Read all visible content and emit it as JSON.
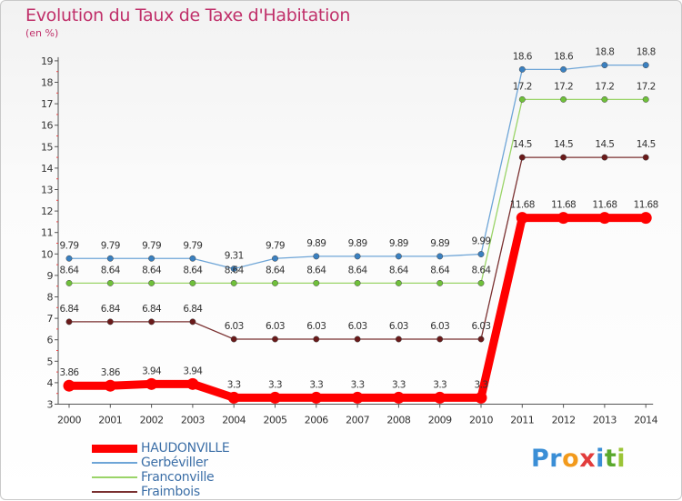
{
  "header": {
    "title": "Evolution du Taux de Taxe d'Habitation",
    "unit": "(en %)"
  },
  "logo": {
    "letters": [
      "P",
      "r",
      "o",
      "x",
      "i",
      "t",
      "i"
    ],
    "colors": [
      "#3a8ed6",
      "#3a8ed6",
      "#f29a1c",
      "#e23c3c",
      "#3a8ed6",
      "#5aa92d",
      "#9bc436"
    ]
  },
  "chart_data": {
    "type": "line",
    "title": "Evolution du Taux de Taxe d'Habitation",
    "ylabel": "(en %)",
    "xlabel": "",
    "ylim": [
      3,
      19
    ],
    "yticks": [
      "3",
      "4",
      "5",
      "6",
      "7",
      "8",
      "9",
      "10",
      "11",
      "12",
      "13",
      "14",
      "15",
      "16",
      "17",
      "18",
      "19"
    ],
    "x": [
      "2000",
      "2001",
      "2002",
      "2003",
      "2004",
      "2005",
      "2006",
      "2007",
      "2008",
      "2009",
      "2010",
      "2011",
      "2012",
      "2013",
      "2014"
    ],
    "grid": false,
    "legend_position": "bottom-left",
    "series": [
      {
        "name": "HAUDONVILLE",
        "color": "#ff0000",
        "emphasis": true,
        "values": [
          3.86,
          3.86,
          3.94,
          3.94,
          3.3,
          3.3,
          3.3,
          3.3,
          3.3,
          3.3,
          3.3,
          11.68,
          11.68,
          11.68,
          11.68
        ],
        "labels": [
          "3.86",
          "3.86",
          "3.94",
          "3.94",
          "3.3",
          "3.3",
          "3.3",
          "3.3",
          "3.3",
          "3.3",
          "3.3",
          "11.68",
          "11.68",
          "11.68",
          "11.68"
        ]
      },
      {
        "name": "Gerbéviller",
        "color": "#6ea5d7",
        "marker": "#3a80c0",
        "values": [
          9.79,
          9.79,
          9.79,
          9.79,
          9.31,
          9.79,
          9.89,
          9.89,
          9.89,
          9.89,
          9.99,
          18.6,
          18.6,
          18.8,
          18.8
        ],
        "labels": [
          "9.79",
          "9.79",
          "9.79",
          "9.79",
          "9.31",
          "9.79",
          "9.89",
          "9.89",
          "9.89",
          "9.89",
          "9.99",
          "18.6",
          "18.6",
          "18.8",
          "18.8"
        ]
      },
      {
        "name": "Franconville",
        "color": "#9ad468",
        "marker": "#6fc03a",
        "values": [
          8.64,
          8.64,
          8.64,
          8.64,
          8.64,
          8.64,
          8.64,
          8.64,
          8.64,
          8.64,
          8.64,
          17.2,
          17.2,
          17.2,
          17.2
        ],
        "labels": [
          "8.64",
          "8.64",
          "8.64",
          "8.64",
          "8.64",
          "8.64",
          "8.64",
          "8.64",
          "8.64",
          "8.64",
          "8.64",
          "17.2",
          "17.2",
          "17.2",
          "17.2"
        ]
      },
      {
        "name": "Fraimbois",
        "color": "#7a3030",
        "marker": "#6a1a1a",
        "values": [
          6.84,
          6.84,
          6.84,
          6.84,
          6.03,
          6.03,
          6.03,
          6.03,
          6.03,
          6.03,
          6.03,
          14.5,
          14.5,
          14.5,
          14.5
        ],
        "labels": [
          "6.84",
          "6.84",
          "6.84",
          "6.84",
          "6.03",
          "6.03",
          "6.03",
          "6.03",
          "6.03",
          "6.03",
          "6.03",
          "14.5",
          "14.5",
          "14.5",
          "14.5"
        ]
      }
    ]
  }
}
